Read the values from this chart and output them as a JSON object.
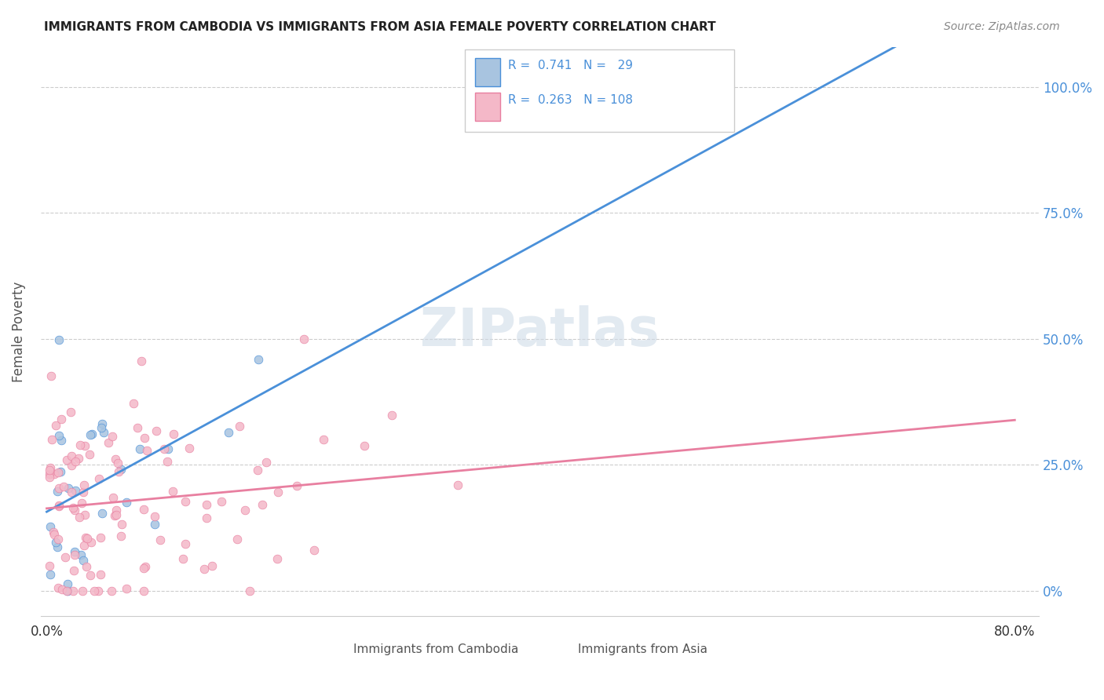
{
  "title": "IMMIGRANTS FROM CAMBODIA VS IMMIGRANTS FROM ASIA FEMALE POVERTY CORRELATION CHART",
  "source": "Source: ZipAtlas.com",
  "ylabel": "Female Poverty",
  "color_cambodia": "#a8c4e0",
  "color_asia": "#f4b8c8",
  "line_color_cambodia": "#4a90d9",
  "line_color_asia": "#e87fa0",
  "legend_R1": "R =  0.741",
  "legend_N1": "N =   29",
  "legend_R2": "R =  0.263",
  "legend_N2": "N = 108"
}
